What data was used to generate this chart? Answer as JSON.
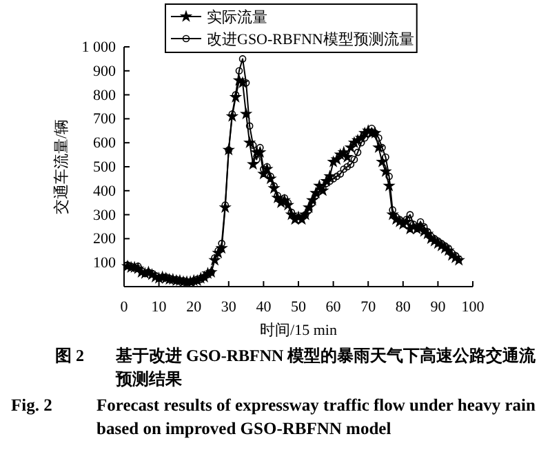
{
  "chart_data": {
    "type": "line",
    "xlabel": "时间/15 min",
    "ylabel": "交通车流量/辆",
    "x": [
      1,
      2,
      3,
      4,
      5,
      6,
      7,
      8,
      9,
      10,
      11,
      12,
      13,
      14,
      15,
      16,
      17,
      18,
      19,
      20,
      21,
      22,
      23,
      24,
      25,
      26,
      27,
      28,
      29,
      30,
      31,
      32,
      33,
      34,
      35,
      36,
      37,
      38,
      39,
      40,
      41,
      42,
      43,
      44,
      45,
      46,
      47,
      48,
      49,
      50,
      51,
      52,
      53,
      54,
      55,
      56,
      57,
      58,
      59,
      60,
      61,
      62,
      63,
      64,
      65,
      66,
      67,
      68,
      69,
      70,
      71,
      72,
      73,
      74,
      75,
      76,
      77,
      78,
      79,
      80,
      81,
      82,
      83,
      84,
      85,
      86,
      87,
      88,
      89,
      90,
      91,
      92,
      93,
      94,
      95,
      96
    ],
    "series": [
      {
        "name": "实际流量",
        "color": "#000000",
        "marker": "star",
        "values": [
          85,
          80,
          80,
          75,
          60,
          55,
          60,
          50,
          40,
          35,
          40,
          35,
          30,
          30,
          25,
          25,
          20,
          20,
          20,
          25,
          25,
          35,
          40,
          55,
          60,
          110,
          140,
          160,
          330,
          570,
          710,
          790,
          860,
          850,
          720,
          600,
          510,
          560,
          560,
          470,
          490,
          450,
          410,
          370,
          350,
          360,
          340,
          300,
          280,
          290,
          280,
          300,
          330,
          360,
          390,
          420,
          400,
          440,
          460,
          520,
          530,
          550,
          560,
          540,
          580,
          600,
          610,
          620,
          640,
          650,
          640,
          640,
          580,
          520,
          480,
          420,
          300,
          280,
          270,
          260,
          270,
          240,
          250,
          240,
          250,
          230,
          220,
          200,
          190,
          180,
          170,
          160,
          150,
          130,
          120,
          110
        ]
      },
      {
        "name": "改进GSO-RBFNN模型预测流量",
        "color": "#000000",
        "marker": "circle",
        "values": [
          90,
          85,
          80,
          85,
          65,
          55,
          60,
          55,
          45,
          35,
          40,
          40,
          35,
          30,
          30,
          25,
          25,
          20,
          20,
          25,
          30,
          30,
          40,
          50,
          60,
          120,
          150,
          180,
          340,
          570,
          720,
          800,
          900,
          950,
          850,
          670,
          590,
          530,
          580,
          490,
          500,
          460,
          420,
          380,
          360,
          370,
          350,
          310,
          290,
          280,
          290,
          300,
          320,
          350,
          380,
          400,
          410,
          430,
          440,
          450,
          460,
          470,
          490,
          500,
          510,
          530,
          560,
          600,
          620,
          640,
          660,
          640,
          620,
          580,
          540,
          460,
          320,
          290,
          280,
          270,
          280,
          300,
          260,
          250,
          270,
          250,
          230,
          210,
          200,
          190,
          180,
          170,
          160,
          140,
          130,
          115
        ]
      }
    ],
    "xlim": [
      0,
      100
    ],
    "xticks": [
      0,
      10,
      20,
      30,
      40,
      50,
      60,
      70,
      80,
      90,
      100
    ],
    "ylim": [
      0,
      1000
    ],
    "yticks": [
      100,
      200,
      300,
      400,
      500,
      600,
      700,
      800,
      900,
      {
        "value": 1000,
        "label": "1 000"
      }
    ],
    "legend": "top",
    "grid": false,
    "annotations": [
      "图 2\t基于改进 GSO-RBFNN 模型的暴雨天气下高速公路交通流预测结果",
      "Fig. 2\tForecast results of expressway traffic flow under heavy rain based on improved GSO-RBFNN model"
    ]
  }
}
